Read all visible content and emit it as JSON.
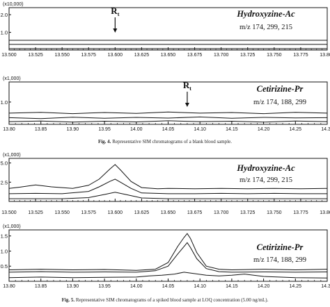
{
  "figure4": {
    "caption_label": "Fig. 4.",
    "caption_text": "Representative SIM chromatograms of a blank blood sample."
  },
  "figure5": {
    "caption_label": "Fig. 5.",
    "caption_text": "Representative SIM chromatograms of a spiked blood sample at LOQ concentration (5.00 ng/mL)."
  },
  "chart_data": [
    {
      "type": "line",
      "figure": "Fig. 4",
      "compound": "Hydroxyzine-Ac",
      "ions": "m/z 174, 299, 215",
      "multiplier": "(x10,000)",
      "annotation": "Rt",
      "annotation_x": 13.6,
      "xlim": [
        13.5,
        13.8
      ],
      "ylim": [
        0,
        2.4
      ],
      "xticks": [
        13.5,
        13.525,
        13.55,
        13.575,
        13.6,
        13.625,
        13.65,
        13.675,
        13.7,
        13.725,
        13.75,
        13.775,
        13.8
      ],
      "xtick_labels": [
        "13.500",
        "13.525",
        "13.550",
        "13.575",
        "13.600",
        "13.625",
        "13.650",
        "13.675",
        "13.700",
        "13.725",
        "13.750",
        "13.775",
        "13.800"
      ],
      "yticks": [
        1.0,
        2.0
      ],
      "ytick_labels": [
        "1.0",
        "2.0"
      ],
      "series": [
        {
          "x": [
            13.5,
            13.8
          ],
          "y": [
            0.55,
            0.55
          ]
        },
        {
          "x": [
            13.5,
            13.8
          ],
          "y": [
            0.32,
            0.32
          ]
        },
        {
          "x": [
            13.5,
            13.8
          ],
          "y": [
            0.08,
            0.08
          ]
        }
      ]
    },
    {
      "type": "line",
      "figure": "Fig. 4",
      "compound": "Cetirizine-Pr",
      "ions": "m/z 174, 188, 299",
      "multiplier": "(x1,000)",
      "annotation": "Rt",
      "annotation_x": 14.08,
      "xlim": [
        13.8,
        14.3
      ],
      "ylim": [
        0,
        1.9
      ],
      "xticks": [
        13.8,
        13.85,
        13.9,
        13.95,
        14.0,
        14.05,
        14.1,
        14.15,
        14.2,
        14.25,
        14.3
      ],
      "xtick_labels": [
        "13.80",
        "13.85",
        "13.90",
        "13.95",
        "14.00",
        "14.05",
        "14.10",
        "14.15",
        "14.20",
        "14.25",
        "14.30"
      ],
      "yticks": [
        1.0
      ],
      "ytick_labels": [
        "1.0"
      ],
      "series": [
        {
          "x": [
            13.8,
            13.85,
            13.9,
            13.95,
            14.0,
            14.05,
            14.1,
            14.15,
            14.2,
            14.25,
            14.3
          ],
          "y": [
            0.5,
            0.54,
            0.48,
            0.53,
            0.49,
            0.55,
            0.5,
            0.53,
            0.48,
            0.54,
            0.5
          ]
        },
        {
          "x": [
            13.8,
            13.85,
            13.9,
            13.95,
            14.0,
            14.05,
            14.1,
            14.15,
            14.2,
            14.25,
            14.3
          ],
          "y": [
            0.3,
            0.26,
            0.32,
            0.27,
            0.31,
            0.28,
            0.33,
            0.27,
            0.31,
            0.29,
            0.3
          ]
        },
        {
          "x": [
            13.8,
            13.85,
            13.9,
            13.95,
            14.0,
            14.05,
            14.1,
            14.15,
            14.2,
            14.25,
            14.3
          ],
          "y": [
            0.12,
            0.15,
            0.1,
            0.14,
            0.11,
            0.16,
            0.12,
            0.14,
            0.1,
            0.15,
            0.12
          ]
        }
      ]
    },
    {
      "type": "line",
      "figure": "Fig. 5",
      "compound": "Hydroxyzine-Ac",
      "ions": "m/z 174, 299, 215",
      "multiplier": "(x1,000)",
      "xlim": [
        13.5,
        13.8
      ],
      "ylim": [
        0,
        5.6
      ],
      "xticks": [
        13.5,
        13.525,
        13.55,
        13.575,
        13.6,
        13.625,
        13.65,
        13.675,
        13.7,
        13.725,
        13.75,
        13.775,
        13.8
      ],
      "xtick_labels": [
        "13.500",
        "13.525",
        "13.550",
        "13.575",
        "13.600",
        "13.625",
        "13.650",
        "13.675",
        "13.700",
        "13.725",
        "13.750",
        "13.775",
        "13.800"
      ],
      "yticks": [
        2.5,
        5.0
      ],
      "ytick_labels": [
        "2.5",
        "5.0"
      ],
      "series": [
        {
          "x": [
            13.5,
            13.51,
            13.525,
            13.54,
            13.56,
            13.575,
            13.585,
            13.595,
            13.6,
            13.605,
            13.615,
            13.625,
            13.64,
            13.65,
            13.675,
            13.7,
            13.725,
            13.75,
            13.775,
            13.8
          ],
          "y": [
            1.7,
            1.85,
            2.15,
            1.9,
            1.7,
            2.1,
            2.9,
            4.2,
            4.8,
            4.1,
            2.6,
            1.8,
            1.65,
            1.7,
            1.65,
            1.7,
            1.65,
            1.7,
            1.65,
            1.7
          ]
        },
        {
          "x": [
            13.5,
            13.525,
            13.55,
            13.575,
            13.585,
            13.595,
            13.6,
            13.605,
            13.615,
            13.625,
            13.65,
            13.675,
            13.7,
            13.725,
            13.75,
            13.775,
            13.8
          ],
          "y": [
            1.0,
            1.05,
            1.0,
            1.3,
            1.9,
            2.6,
            2.9,
            2.5,
            1.7,
            1.1,
            1.0,
            1.0,
            1.05,
            1.0,
            1.05,
            1.0,
            1.0
          ]
        },
        {
          "x": [
            13.5,
            13.525,
            13.55,
            13.575,
            13.59,
            13.6,
            13.61,
            13.625,
            13.65,
            13.675,
            13.7,
            13.725,
            13.75,
            13.775,
            13.8
          ],
          "y": [
            0.35,
            0.35,
            0.35,
            0.5,
            0.9,
            1.2,
            0.9,
            0.45,
            0.35,
            0.35,
            0.35,
            0.35,
            0.35,
            0.35,
            0.35
          ]
        }
      ]
    },
    {
      "type": "line",
      "figure": "Fig. 5",
      "compound": "Cetirizine-Pr",
      "ions": "m/z 174, 188, 299",
      "multiplier": "(x1,000)",
      "xlim": [
        13.8,
        14.3
      ],
      "ylim": [
        0,
        1.7
      ],
      "xticks": [
        13.8,
        13.85,
        13.9,
        13.95,
        14.0,
        14.05,
        14.1,
        14.15,
        14.2,
        14.25,
        14.3
      ],
      "xtick_labels": [
        "13.80",
        "13.85",
        "13.90",
        "13.95",
        "14.00",
        "14.05",
        "14.10",
        "14.15",
        "14.20",
        "14.25",
        "14.30"
      ],
      "yticks": [
        0.5,
        1.0,
        1.5
      ],
      "ytick_labels": [
        "0.5",
        "1.0",
        "1.5"
      ],
      "series": [
        {
          "x": [
            13.8,
            13.85,
            13.9,
            13.95,
            14.0,
            14.03,
            14.05,
            14.065,
            14.075,
            14.08,
            14.085,
            14.095,
            14.11,
            14.13,
            14.15,
            14.2,
            14.25,
            14.3
          ],
          "y": [
            0.38,
            0.4,
            0.38,
            0.39,
            0.36,
            0.4,
            0.62,
            1.15,
            1.45,
            1.58,
            1.42,
            0.95,
            0.5,
            0.4,
            0.38,
            0.4,
            0.38,
            0.4
          ]
        },
        {
          "x": [
            13.8,
            13.85,
            13.9,
            13.95,
            14.0,
            14.03,
            14.05,
            14.065,
            14.075,
            14.08,
            14.085,
            14.095,
            14.11,
            14.13,
            14.15,
            14.2,
            14.25,
            14.3
          ],
          "y": [
            0.3,
            0.32,
            0.3,
            0.31,
            0.3,
            0.35,
            0.5,
            0.9,
            1.15,
            1.28,
            1.12,
            0.75,
            0.42,
            0.32,
            0.3,
            0.31,
            0.3,
            0.31
          ]
        },
        {
          "x": [
            13.8,
            13.85,
            13.9,
            13.95,
            14.0,
            14.02,
            14.04,
            14.06,
            14.075,
            14.09,
            14.11,
            14.13,
            14.15,
            14.17,
            14.2,
            14.25,
            14.3
          ],
          "y": [
            0.12,
            0.14,
            0.12,
            0.13,
            0.14,
            0.18,
            0.2,
            0.24,
            0.3,
            0.26,
            0.2,
            0.18,
            0.2,
            0.24,
            0.16,
            0.12,
            0.11
          ]
        }
      ]
    }
  ]
}
